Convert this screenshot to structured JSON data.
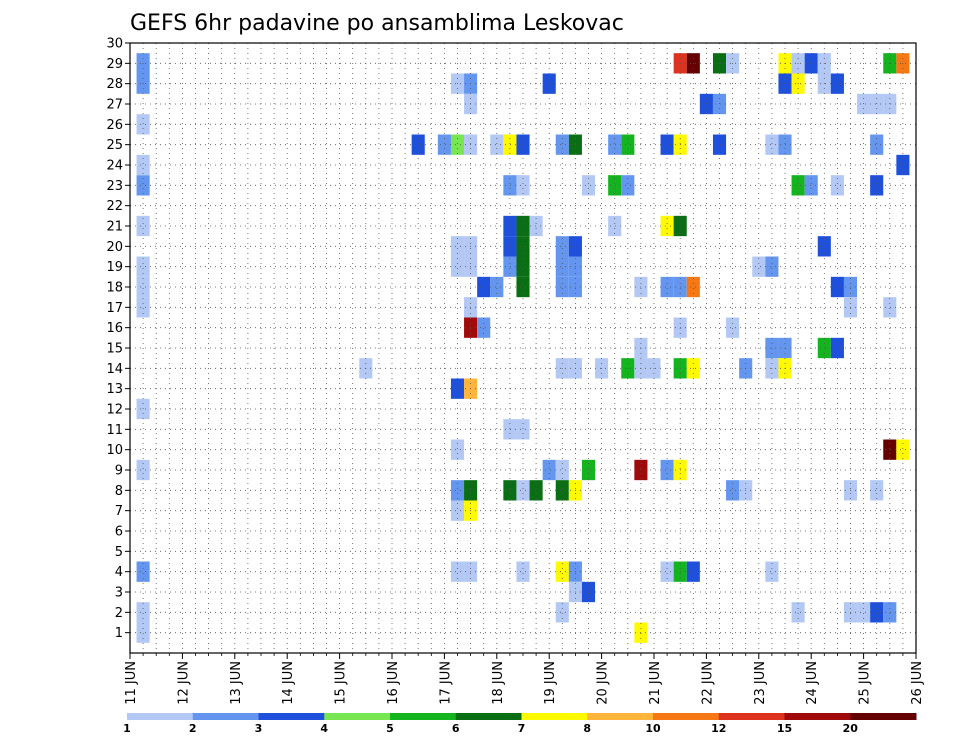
{
  "chart_data": {
    "type": "heatmap",
    "title": "GEFS 6hr padavine po ansamblima Leskovac",
    "xlabel": "",
    "ylabel": "",
    "x_tick_labels": [
      "11 JUN",
      "12 JUN",
      "13 JUN",
      "14 JUN",
      "15 JUN",
      "16 JUN",
      "17 JUN",
      "18 JUN",
      "19 JUN",
      "20 JUN",
      "21 JUN",
      "22 JUN",
      "23 JUN",
      "24 JUN",
      "25 JUN",
      "26 JUN"
    ],
    "y_tick_labels": [
      "1",
      "2",
      "3",
      "4",
      "5",
      "6",
      "7",
      "8",
      "9",
      "10",
      "11",
      "12",
      "13",
      "14",
      "15",
      "16",
      "17",
      "18",
      "19",
      "20",
      "21",
      "22",
      "23",
      "24",
      "25",
      "26",
      "27",
      "28",
      "29",
      "30"
    ],
    "xlim": [
      11,
      26
    ],
    "ylim": [
      0,
      30
    ],
    "grid": true,
    "legend": {
      "placement": "bottom",
      "labels": [
        "1",
        "2",
        "3",
        "4",
        "5",
        "6",
        "7",
        "8",
        "10",
        "12",
        "15",
        "20"
      ],
      "colors": [
        "#b4c8f5",
        "#6496f0",
        "#1e50dc",
        "#78e650",
        "#14b41e",
        "#0a6e14",
        "#fffa00",
        "#ffb43c",
        "#f57814",
        "#dc321e",
        "#a00a0a",
        "#640000"
      ]
    },
    "cells": [
      {
        "x": 11.25,
        "y": 1,
        "v": 1
      },
      {
        "x": 11.25,
        "y": 2,
        "v": 1
      },
      {
        "x": 11.25,
        "y": 4,
        "v": 2
      },
      {
        "x": 11.25,
        "y": 9,
        "v": 1
      },
      {
        "x": 11.25,
        "y": 12,
        "v": 1
      },
      {
        "x": 11.25,
        "y": 17,
        "v": 1
      },
      {
        "x": 11.25,
        "y": 18,
        "v": 1
      },
      {
        "x": 11.25,
        "y": 19,
        "v": 1
      },
      {
        "x": 11.25,
        "y": 21,
        "v": 1
      },
      {
        "x": 11.25,
        "y": 23,
        "v": 2
      },
      {
        "x": 11.25,
        "y": 24,
        "v": 1
      },
      {
        "x": 11.25,
        "y": 26,
        "v": 1
      },
      {
        "x": 11.25,
        "y": 28,
        "v": 2
      },
      {
        "x": 11.25,
        "y": 29,
        "v": 2
      },
      {
        "x": 15.5,
        "y": 14,
        "v": 1
      },
      {
        "x": 16.5,
        "y": 25,
        "v": 3
      },
      {
        "x": 17.0,
        "y": 25,
        "v": 2
      },
      {
        "x": 17.25,
        "y": 25,
        "v": 4
      },
      {
        "x": 17.5,
        "y": 25,
        "v": 1
      },
      {
        "x": 17.25,
        "y": 28,
        "v": 1
      },
      {
        "x": 17.5,
        "y": 28,
        "v": 2
      },
      {
        "x": 17.5,
        "y": 27,
        "v": 1
      },
      {
        "x": 17.25,
        "y": 20,
        "v": 1
      },
      {
        "x": 17.5,
        "y": 20,
        "v": 1
      },
      {
        "x": 17.25,
        "y": 19,
        "v": 1
      },
      {
        "x": 17.5,
        "y": 19,
        "v": 1
      },
      {
        "x": 17.5,
        "y": 17,
        "v": 1
      },
      {
        "x": 17.5,
        "y": 16,
        "v": 15
      },
      {
        "x": 17.75,
        "y": 16,
        "v": 2
      },
      {
        "x": 17.25,
        "y": 13,
        "v": 3
      },
      {
        "x": 17.5,
        "y": 13,
        "v": 8
      },
      {
        "x": 17.25,
        "y": 10,
        "v": 1
      },
      {
        "x": 17.25,
        "y": 8,
        "v": 2
      },
      {
        "x": 17.5,
        "y": 8,
        "v": 6
      },
      {
        "x": 17.25,
        "y": 7,
        "v": 1
      },
      {
        "x": 17.5,
        "y": 7,
        "v": 7
      },
      {
        "x": 17.25,
        "y": 4,
        "v": 1
      },
      {
        "x": 17.5,
        "y": 4,
        "v": 1
      },
      {
        "x": 17.75,
        "y": 18,
        "v": 3
      },
      {
        "x": 18.0,
        "y": 18,
        "v": 2
      },
      {
        "x": 18.0,
        "y": 25,
        "v": 1
      },
      {
        "x": 18.25,
        "y": 25,
        "v": 7
      },
      {
        "x": 18.5,
        "y": 25,
        "v": 3
      },
      {
        "x": 18.25,
        "y": 23,
        "v": 2
      },
      {
        "x": 18.5,
        "y": 23,
        "v": 1
      },
      {
        "x": 18.25,
        "y": 21,
        "v": 3
      },
      {
        "x": 18.5,
        "y": 21,
        "v": 6
      },
      {
        "x": 18.75,
        "y": 21,
        "v": 1
      },
      {
        "x": 18.25,
        "y": 20,
        "v": 3
      },
      {
        "x": 18.5,
        "y": 20,
        "v": 6
      },
      {
        "x": 18.25,
        "y": 19,
        "v": 2
      },
      {
        "x": 18.5,
        "y": 19,
        "v": 6
      },
      {
        "x": 18.5,
        "y": 18,
        "v": 6
      },
      {
        "x": 18.25,
        "y": 11,
        "v": 1
      },
      {
        "x": 18.5,
        "y": 11,
        "v": 1
      },
      {
        "x": 18.25,
        "y": 8,
        "v": 6
      },
      {
        "x": 18.5,
        "y": 8,
        "v": 1
      },
      {
        "x": 18.75,
        "y": 8,
        "v": 6
      },
      {
        "x": 18.5,
        "y": 4,
        "v": 1
      },
      {
        "x": 19.0,
        "y": 28,
        "v": 3
      },
      {
        "x": 19.25,
        "y": 25,
        "v": 2
      },
      {
        "x": 19.5,
        "y": 25,
        "v": 6
      },
      {
        "x": 19.25,
        "y": 20,
        "v": 2
      },
      {
        "x": 19.5,
        "y": 20,
        "v": 3
      },
      {
        "x": 19.25,
        "y": 19,
        "v": 2
      },
      {
        "x": 19.5,
        "y": 19,
        "v": 2
      },
      {
        "x": 19.25,
        "y": 18,
        "v": 2
      },
      {
        "x": 19.5,
        "y": 18,
        "v": 2
      },
      {
        "x": 19.25,
        "y": 14,
        "v": 1
      },
      {
        "x": 19.5,
        "y": 14,
        "v": 1
      },
      {
        "x": 19.0,
        "y": 9,
        "v": 2
      },
      {
        "x": 19.25,
        "y": 9,
        "v": 1
      },
      {
        "x": 19.75,
        "y": 9,
        "v": 5
      },
      {
        "x": 19.25,
        "y": 8,
        "v": 6
      },
      {
        "x": 19.5,
        "y": 8,
        "v": 7
      },
      {
        "x": 19.25,
        "y": 4,
        "v": 7
      },
      {
        "x": 19.5,
        "y": 4,
        "v": 2
      },
      {
        "x": 19.5,
        "y": 3,
        "v": 1
      },
      {
        "x": 19.75,
        "y": 3,
        "v": 3
      },
      {
        "x": 19.25,
        "y": 2,
        "v": 1
      },
      {
        "x": 19.75,
        "y": 23,
        "v": 1
      },
      {
        "x": 20.0,
        "y": 14,
        "v": 1
      },
      {
        "x": 20.25,
        "y": 25,
        "v": 2
      },
      {
        "x": 20.5,
        "y": 25,
        "v": 5
      },
      {
        "x": 20.25,
        "y": 23,
        "v": 5
      },
      {
        "x": 20.5,
        "y": 23,
        "v": 2
      },
      {
        "x": 20.25,
        "y": 21,
        "v": 1
      },
      {
        "x": 20.5,
        "y": 14,
        "v": 5
      },
      {
        "x": 20.75,
        "y": 14,
        "v": 1
      },
      {
        "x": 21.0,
        "y": 14,
        "v": 1
      },
      {
        "x": 20.75,
        "y": 15,
        "v": 1
      },
      {
        "x": 20.75,
        "y": 18,
        "v": 1
      },
      {
        "x": 20.75,
        "y": 9,
        "v": 15
      },
      {
        "x": 20.75,
        "y": 1,
        "v": 7
      },
      {
        "x": 21.25,
        "y": 25,
        "v": 3
      },
      {
        "x": 21.5,
        "y": 25,
        "v": 7
      },
      {
        "x": 21.25,
        "y": 21,
        "v": 7
      },
      {
        "x": 21.5,
        "y": 21,
        "v": 6
      },
      {
        "x": 21.25,
        "y": 18,
        "v": 2
      },
      {
        "x": 21.5,
        "y": 18,
        "v": 2
      },
      {
        "x": 21.75,
        "y": 18,
        "v": 10
      },
      {
        "x": 21.5,
        "y": 16,
        "v": 1
      },
      {
        "x": 21.5,
        "y": 14,
        "v": 5
      },
      {
        "x": 21.75,
        "y": 14,
        "v": 7
      },
      {
        "x": 21.25,
        "y": 9,
        "v": 2
      },
      {
        "x": 21.5,
        "y": 9,
        "v": 7
      },
      {
        "x": 21.25,
        "y": 4,
        "v": 1
      },
      {
        "x": 21.5,
        "y": 4,
        "v": 5
      },
      {
        "x": 21.75,
        "y": 4,
        "v": 3
      },
      {
        "x": 21.5,
        "y": 29,
        "v": 12
      },
      {
        "x": 21.75,
        "y": 29,
        "v": 20
      },
      {
        "x": 22.0,
        "y": 27,
        "v": 3
      },
      {
        "x": 22.25,
        "y": 27,
        "v": 2
      },
      {
        "x": 22.25,
        "y": 29,
        "v": 6
      },
      {
        "x": 22.5,
        "y": 29,
        "v": 1
      },
      {
        "x": 22.25,
        "y": 25,
        "v": 3
      },
      {
        "x": 22.5,
        "y": 16,
        "v": 1
      },
      {
        "x": 22.5,
        "y": 8,
        "v": 2
      },
      {
        "x": 22.75,
        "y": 8,
        "v": 1
      },
      {
        "x": 22.75,
        "y": 14,
        "v": 2
      },
      {
        "x": 23.0,
        "y": 19,
        "v": 1
      },
      {
        "x": 23.25,
        "y": 19,
        "v": 2
      },
      {
        "x": 23.25,
        "y": 25,
        "v": 1
      },
      {
        "x": 23.5,
        "y": 25,
        "v": 2
      },
      {
        "x": 23.25,
        "y": 15,
        "v": 2
      },
      {
        "x": 23.5,
        "y": 15,
        "v": 2
      },
      {
        "x": 23.25,
        "y": 14,
        "v": 1
      },
      {
        "x": 23.5,
        "y": 14,
        "v": 7
      },
      {
        "x": 23.25,
        "y": 4,
        "v": 1
      },
      {
        "x": 23.5,
        "y": 29,
        "v": 7
      },
      {
        "x": 23.75,
        "y": 29,
        "v": 1
      },
      {
        "x": 24.0,
        "y": 29,
        "v": 3
      },
      {
        "x": 24.25,
        "y": 29,
        "v": 1
      },
      {
        "x": 23.5,
        "y": 28,
        "v": 3
      },
      {
        "x": 23.75,
        "y": 28,
        "v": 7
      },
      {
        "x": 24.25,
        "y": 28,
        "v": 1
      },
      {
        "x": 24.5,
        "y": 28,
        "v": 3
      },
      {
        "x": 23.75,
        "y": 23,
        "v": 5
      },
      {
        "x": 24.0,
        "y": 23,
        "v": 2
      },
      {
        "x": 24.5,
        "y": 23,
        "v": 1
      },
      {
        "x": 23.75,
        "y": 2,
        "v": 1
      },
      {
        "x": 24.25,
        "y": 20,
        "v": 3
      },
      {
        "x": 24.5,
        "y": 18,
        "v": 3
      },
      {
        "x": 24.75,
        "y": 18,
        "v": 2
      },
      {
        "x": 24.75,
        "y": 17,
        "v": 1
      },
      {
        "x": 24.25,
        "y": 15,
        "v": 5
      },
      {
        "x": 24.5,
        "y": 15,
        "v": 3
      },
      {
        "x": 24.75,
        "y": 8,
        "v": 1
      },
      {
        "x": 24.75,
        "y": 2,
        "v": 1
      },
      {
        "x": 25.0,
        "y": 2,
        "v": 1
      },
      {
        "x": 25.25,
        "y": 2,
        "v": 3
      },
      {
        "x": 25.5,
        "y": 2,
        "v": 2
      },
      {
        "x": 25.0,
        "y": 27,
        "v": 1
      },
      {
        "x": 25.25,
        "y": 27,
        "v": 1
      },
      {
        "x": 25.5,
        "y": 27,
        "v": 1
      },
      {
        "x": 25.25,
        "y": 25,
        "v": 2
      },
      {
        "x": 25.25,
        "y": 23,
        "v": 3
      },
      {
        "x": 25.25,
        "y": 8,
        "v": 1
      },
      {
        "x": 25.5,
        "y": 17,
        "v": 1
      },
      {
        "x": 25.5,
        "y": 29,
        "v": 5
      },
      {
        "x": 25.75,
        "y": 29,
        "v": 10
      },
      {
        "x": 25.75,
        "y": 24,
        "v": 3
      },
      {
        "x": 25.5,
        "y": 10,
        "v": 20
      },
      {
        "x": 25.75,
        "y": 10,
        "v": 7
      }
    ]
  }
}
